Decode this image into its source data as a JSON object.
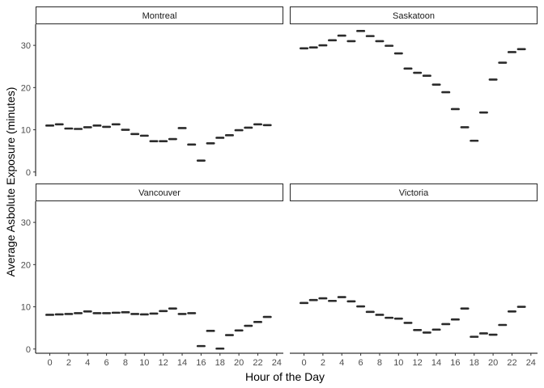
{
  "chart_data": {
    "type": "scatter",
    "xlabel": "Hour of the Day",
    "ylabel": "Average Asbolute Exposure (minutes)",
    "x_ticks": [
      0,
      2,
      4,
      6,
      8,
      10,
      12,
      14,
      16,
      18,
      20,
      22,
      24
    ],
    "y_ticks": [
      0,
      10,
      20,
      30
    ],
    "xlim": [
      -1.5,
      24.7
    ],
    "ylim": [
      -1,
      35
    ],
    "grid": false,
    "panels": [
      {
        "name": "Montreal",
        "x": [
          0,
          1,
          2,
          3,
          4,
          5,
          6,
          7,
          8,
          9,
          10,
          11,
          12,
          13,
          14,
          15,
          16,
          17,
          18,
          19,
          20,
          21,
          22,
          23
        ],
        "y": [
          11.0,
          11.3,
          10.3,
          10.2,
          10.6,
          11.0,
          10.7,
          11.3,
          10.0,
          9.0,
          8.6,
          7.3,
          7.3,
          7.8,
          10.4,
          6.5,
          2.7,
          6.8,
          8.1,
          8.7,
          9.9,
          10.5,
          11.3,
          11.1
        ]
      },
      {
        "name": "Saskatoon",
        "x": [
          0,
          1,
          2,
          3,
          4,
          5,
          6,
          7,
          8,
          9,
          10,
          11,
          12,
          13,
          14,
          15,
          16,
          17,
          18,
          19,
          20,
          21,
          22,
          23
        ],
        "y": [
          29.3,
          29.5,
          30.0,
          31.2,
          32.3,
          31.0,
          33.4,
          32.2,
          31.0,
          29.9,
          28.1,
          24.5,
          23.5,
          22.8,
          20.7,
          18.9,
          14.9,
          10.6,
          7.4,
          14.1,
          21.9,
          25.9,
          28.4,
          29.1
        ]
      },
      {
        "name": "Vancouver",
        "x": [
          0,
          1,
          2,
          3,
          4,
          5,
          6,
          7,
          8,
          9,
          10,
          11,
          12,
          13,
          14,
          15,
          16,
          17,
          18,
          19,
          20,
          21,
          22,
          23
        ],
        "y": [
          8.1,
          8.2,
          8.3,
          8.5,
          8.9,
          8.5,
          8.5,
          8.6,
          8.7,
          8.3,
          8.2,
          8.4,
          9.0,
          9.6,
          8.3,
          8.5,
          0.7,
          4.3,
          0.1,
          3.3,
          4.4,
          5.5,
          6.4,
          7.6
        ]
      },
      {
        "name": "Victoria",
        "x": [
          0,
          1,
          2,
          3,
          4,
          5,
          6,
          7,
          8,
          9,
          10,
          11,
          12,
          13,
          14,
          15,
          16,
          17,
          18,
          19,
          20,
          21,
          22,
          23
        ],
        "y": [
          10.9,
          11.6,
          12.0,
          11.4,
          12.3,
          11.3,
          10.1,
          8.8,
          8.1,
          7.4,
          7.2,
          6.2,
          4.5,
          3.9,
          4.6,
          5.9,
          7.0,
          9.6,
          2.9,
          3.7,
          3.4,
          5.7,
          8.9,
          10.0
        ]
      }
    ]
  }
}
